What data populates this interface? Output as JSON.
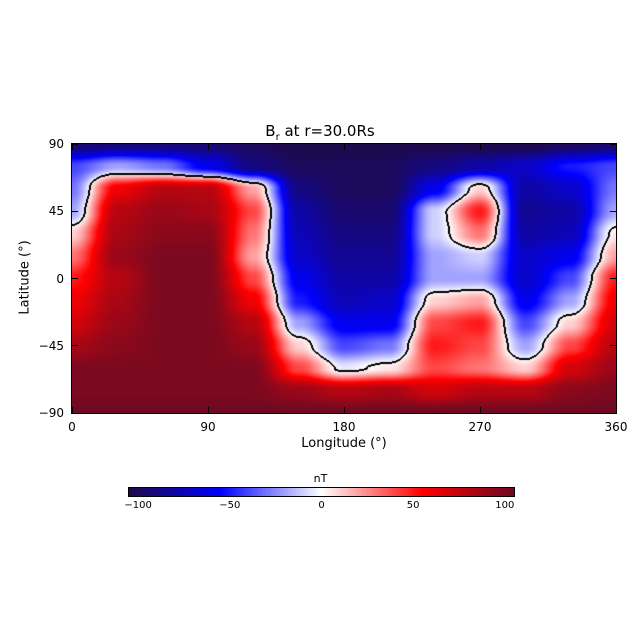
{
  "chart_data": {
    "type": "heatmap",
    "title": {
      "main": "B",
      "subscript": "r",
      "rest": " at r=30.0Rs"
    },
    "xlabel": "Longitude (°)",
    "ylabel": "Latitude (°)",
    "xlim": [
      0,
      360
    ],
    "ylim": [
      -90,
      90
    ],
    "xticks": [
      {
        "v": 0,
        "label": "0"
      },
      {
        "v": 90,
        "label": "90"
      },
      {
        "v": 180,
        "label": "180"
      },
      {
        "v": 270,
        "label": "270"
      },
      {
        "v": 360,
        "label": "360"
      }
    ],
    "yticks": [
      {
        "v": 90,
        "label": "90"
      },
      {
        "v": 45,
        "label": "45"
      },
      {
        "v": 0,
        "label": "0"
      },
      {
        "v": -45,
        "label": "−45"
      },
      {
        "v": -90,
        "label": "−90"
      }
    ],
    "contour_level": 0,
    "contour_color": "#000000",
    "grid_lon": [
      0,
      30,
      60,
      90,
      120,
      150,
      180,
      210,
      240,
      270,
      300,
      330,
      360
    ],
    "grid_lat": [
      90,
      75,
      60,
      45,
      30,
      15,
      0,
      -15,
      -30,
      -45,
      -60,
      -75,
      -90
    ],
    "values": [
      [
        -95,
        -92,
        -92,
        -95,
        -100,
        -105,
        -105,
        -105,
        -105,
        -105,
        -105,
        -100,
        -95
      ],
      [
        -40,
        -20,
        -30,
        -60,
        -90,
        -100,
        -100,
        -100,
        -90,
        -80,
        -70,
        -50,
        -40
      ],
      [
        -30,
        60,
        80,
        80,
        20,
        -90,
        -100,
        -100,
        -60,
        10,
        -80,
        -70,
        -30
      ],
      [
        -20,
        80,
        90,
        85,
        40,
        -80,
        -95,
        -95,
        -10,
        50,
        -85,
        -80,
        -20
      ],
      [
        10,
        85,
        95,
        95,
        30,
        -75,
        -90,
        -90,
        -10,
        30,
        -80,
        -75,
        5
      ],
      [
        30,
        90,
        100,
        100,
        20,
        -70,
        -85,
        -85,
        -20,
        -10,
        -70,
        -60,
        20
      ],
      [
        50,
        80,
        100,
        100,
        40,
        -60,
        -80,
        -80,
        -20,
        -20,
        -70,
        -40,
        50
      ],
      [
        60,
        85,
        100,
        100,
        60,
        -50,
        -75,
        -70,
        10,
        20,
        -60,
        -20,
        60
      ],
      [
        70,
        90,
        100,
        100,
        80,
        -20,
        -60,
        -60,
        40,
        50,
        -40,
        10,
        70
      ],
      [
        85,
        95,
        100,
        100,
        90,
        10,
        -40,
        -30,
        50,
        40,
        -20,
        40,
        80
      ],
      [
        100,
        100,
        100,
        100,
        100,
        40,
        -5,
        5,
        40,
        30,
        10,
        70,
        90
      ],
      [
        100,
        100,
        100,
        100,
        100,
        90,
        80,
        85,
        70,
        80,
        80,
        95,
        100
      ],
      [
        105,
        105,
        105,
        105,
        105,
        105,
        105,
        105,
        105,
        105,
        105,
        105,
        105
      ]
    ],
    "colorbar": {
      "label": "nT",
      "range": [
        -105,
        105
      ],
      "ticks": [
        {
          "v": -100,
          "label": "−100"
        },
        {
          "v": -50,
          "label": "−50"
        },
        {
          "v": 0,
          "label": "0"
        },
        {
          "v": 50,
          "label": "50"
        },
        {
          "v": 100,
          "label": "100"
        }
      ],
      "colors": [
        [
          -105,
          "#1e0a4a"
        ],
        [
          -55,
          "#0000ff"
        ],
        [
          0,
          "#ffffff"
        ],
        [
          55,
          "#ff0000"
        ],
        [
          105,
          "#6e0a22"
        ]
      ]
    }
  }
}
